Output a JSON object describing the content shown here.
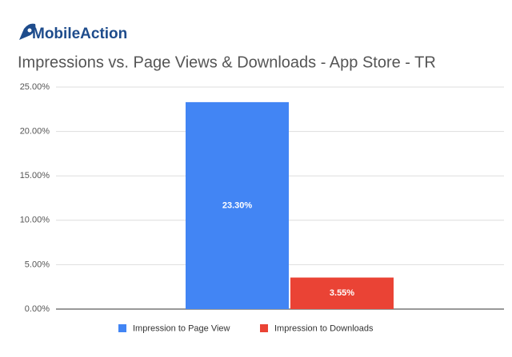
{
  "brand": "MobileAction",
  "chart_data": {
    "type": "bar",
    "title": "Impressions vs. Page Views & Downloads - App Store - TR",
    "categories": [
      null
    ],
    "series": [
      {
        "name": "Impression to Page View",
        "color": "#4285f4",
        "values": [
          23.3
        ],
        "value_labels": [
          "23.30%"
        ]
      },
      {
        "name": "Impression to Downloads",
        "color": "#ea4335",
        "values": [
          3.55
        ],
        "value_labels": [
          "3.55%"
        ]
      }
    ],
    "ylim": [
      0,
      25
    ],
    "yticks": [
      {
        "value": 0,
        "label": "0.00%"
      },
      {
        "value": 5,
        "label": "5.00%"
      },
      {
        "value": 10,
        "label": "10.00%"
      },
      {
        "value": 15,
        "label": "15.00%"
      },
      {
        "value": 20,
        "label": "20.00%"
      },
      {
        "value": 25,
        "label": "25.00%"
      }
    ],
    "grid": true,
    "legend": "bottom"
  }
}
